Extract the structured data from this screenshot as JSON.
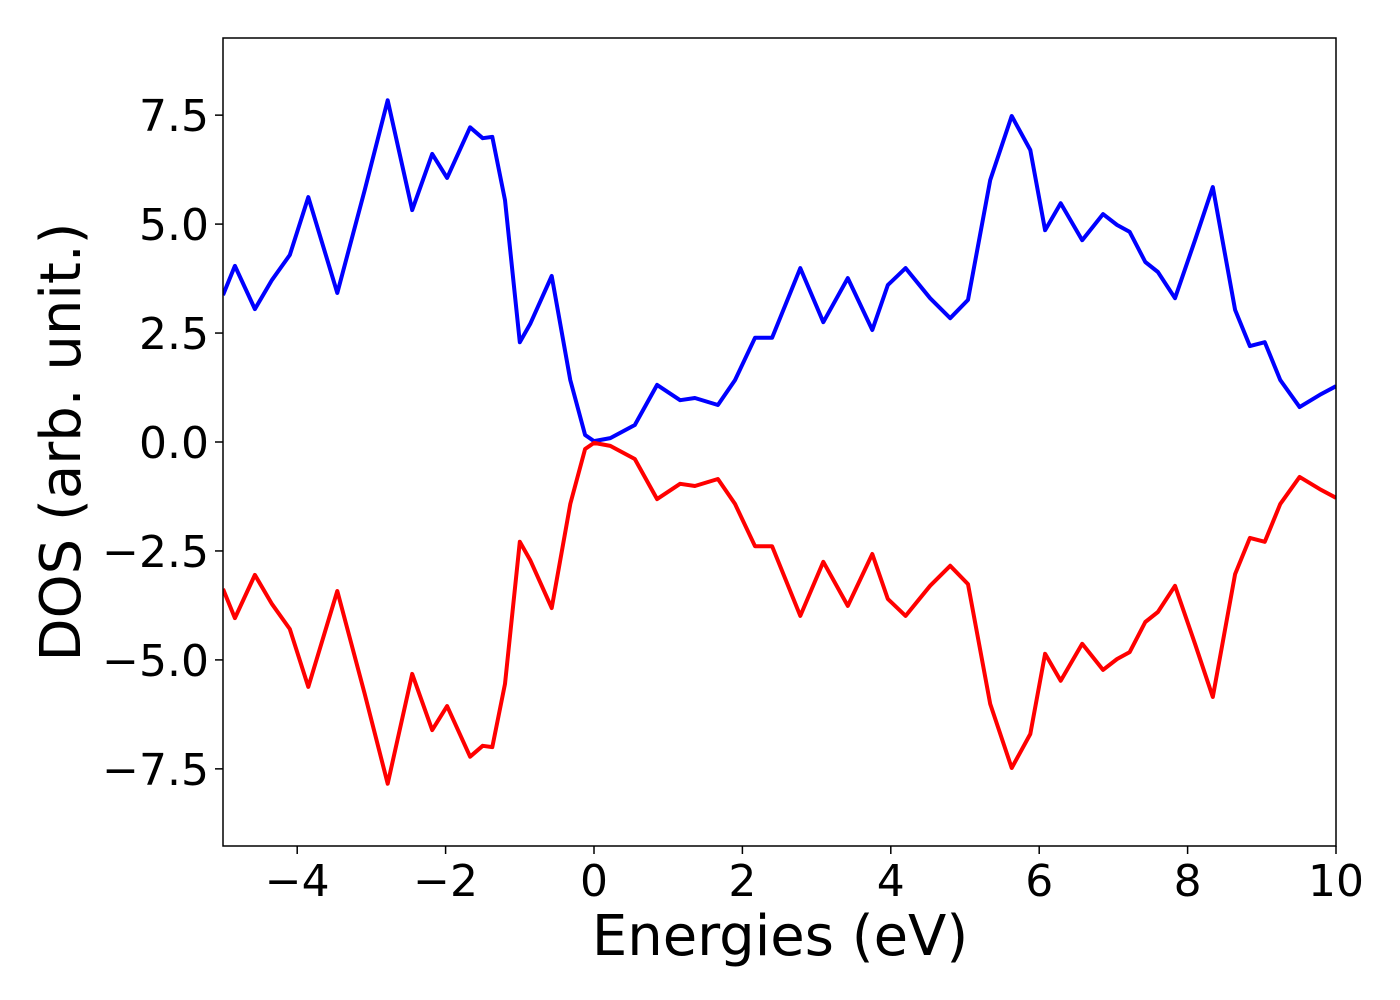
{
  "chart_data": {
    "type": "line",
    "xlabel": "Energies (eV)",
    "ylabel": "DOS (arb. unit.)",
    "xlim": [
      -5,
      10
    ],
    "ylim": [
      -9.27,
      9.27
    ],
    "xticks": [
      {
        "value": -4,
        "label": "−4"
      },
      {
        "value": -2,
        "label": "−2"
      },
      0,
      2,
      4,
      6,
      8,
      10
    ],
    "yticks": [
      {
        "value": -7.5,
        "label": "−7.5"
      },
      {
        "value": -5,
        "label": "−5.0"
      },
      {
        "value": -2.5,
        "label": "−2.5"
      },
      {
        "value": 0,
        "label": "0.0"
      },
      2.5,
      {
        "value": 5,
        "label": "5.0"
      },
      7.5
    ],
    "x": [
      -5,
      -4.84,
      -4.57,
      -4.34,
      -4.1,
      -3.85,
      -3.46,
      -3.09,
      -2.78,
      -2.45,
      -2.18,
      -1.98,
      -1.67,
      -1.5,
      -1.37,
      -1.2,
      -1.0,
      -0.86,
      -0.57,
      -0.32,
      -0.12,
      0,
      0.22,
      0.55,
      0.85,
      1.16,
      1.36,
      1.67,
      1.9,
      2.17,
      2.4,
      2.78,
      3.09,
      3.42,
      3.75,
      3.96,
      4.2,
      4.53,
      4.8,
      5.04,
      5.34,
      5.63,
      5.88,
      6.08,
      6.29,
      6.58,
      6.86,
      7.05,
      7.22,
      7.43,
      7.6,
      7.83,
      8.1,
      8.34,
      8.64,
      8.84,
      9.04,
      9.25,
      9.51,
      9.78,
      10
    ],
    "series": [
      {
        "color": "#0000ff",
        "values": [
          3.37,
          4.04,
          3.05,
          3.72,
          4.29,
          5.62,
          3.42,
          5.78,
          7.84,
          5.32,
          6.61,
          6.06,
          7.22,
          6.97,
          7.0,
          5.55,
          2.29,
          2.71,
          3.81,
          1.42,
          0.16,
          0.02,
          0.09,
          0.39,
          1.31,
          0.96,
          1.01,
          0.85,
          1.42,
          2.39,
          2.39,
          3.99,
          2.75,
          3.76,
          2.57,
          3.6,
          3.99,
          3.3,
          2.84,
          3.26,
          6.01,
          7.48,
          6.7,
          4.86,
          5.48,
          4.63,
          5.23,
          4.98,
          4.82,
          4.13,
          3.9,
          3.3,
          4.63,
          5.85,
          3.03,
          2.2,
          2.29,
          1.42,
          0.8,
          1.08,
          1.28
        ]
      },
      {
        "color": "#ff0000",
        "values": [
          -3.37,
          -4.04,
          -3.05,
          -3.72,
          -4.29,
          -5.62,
          -3.42,
          -5.78,
          -7.84,
          -5.32,
          -6.61,
          -6.06,
          -7.22,
          -6.97,
          -7.0,
          -5.55,
          -2.29,
          -2.71,
          -3.81,
          -1.42,
          -0.16,
          -0.02,
          -0.09,
          -0.39,
          -1.31,
          -0.96,
          -1.01,
          -0.85,
          -1.42,
          -2.39,
          -2.39,
          -3.99,
          -2.75,
          -3.76,
          -2.57,
          -3.6,
          -3.99,
          -3.3,
          -2.84,
          -3.26,
          -6.01,
          -7.48,
          -6.7,
          -4.86,
          -5.48,
          -4.63,
          -5.23,
          -4.98,
          -4.82,
          -4.13,
          -3.9,
          -3.3,
          -4.63,
          -5.85,
          -3.03,
          -2.2,
          -2.29,
          -1.42,
          -0.8,
          -1.08,
          -1.28
        ]
      }
    ]
  }
}
